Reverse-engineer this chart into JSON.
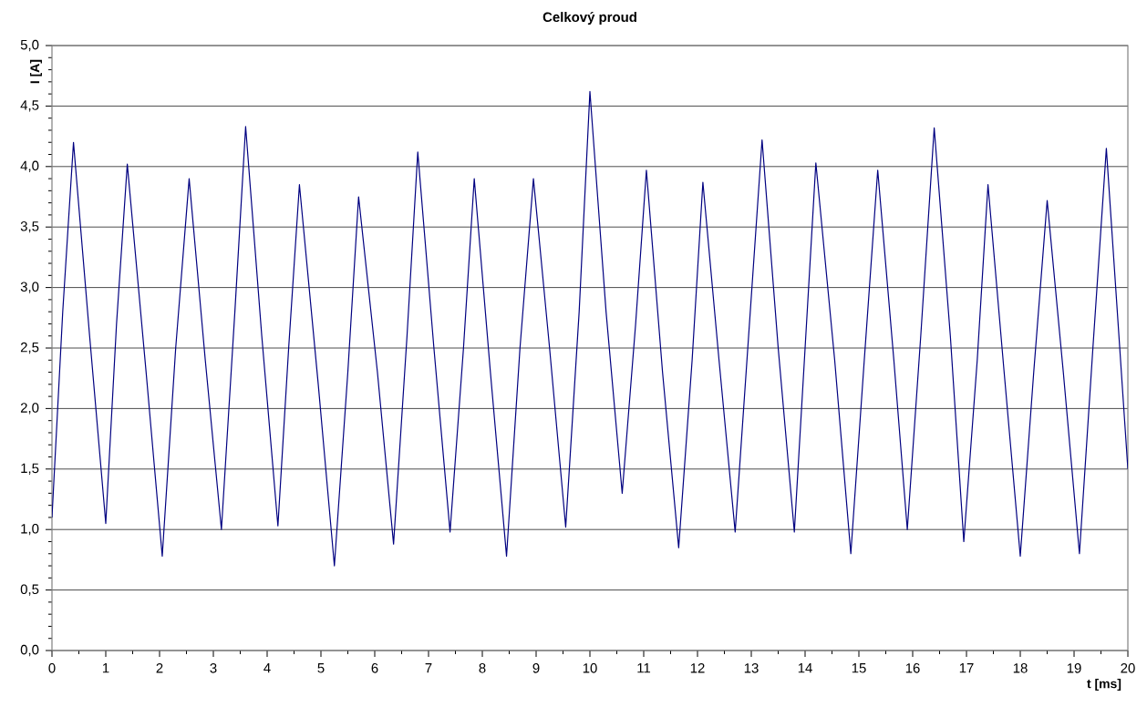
{
  "chart_data": {
    "type": "line",
    "title": "Celkový proud",
    "xlabel": "t [ms]",
    "ylabel": "I [A]",
    "x": [
      0,
      0.2,
      0.4,
      0.7,
      1.0,
      1.2,
      1.4,
      1.75,
      2.05,
      2.3,
      2.55,
      2.85,
      3.15,
      3.4,
      3.6,
      3.9,
      4.2,
      4.4,
      4.6,
      4.95,
      5.25,
      5.5,
      5.7,
      6.05,
      6.35,
      6.6,
      6.8,
      7.1,
      7.4,
      7.65,
      7.85,
      8.15,
      8.45,
      8.7,
      8.95,
      9.25,
      9.55,
      9.8,
      10.0,
      10.3,
      10.6,
      10.85,
      11.05,
      11.35,
      11.65,
      11.9,
      12.1,
      12.4,
      12.7,
      12.95,
      13.2,
      13.5,
      13.8,
      14.0,
      14.2,
      14.55,
      14.85,
      15.1,
      15.35,
      15.65,
      15.9,
      16.15,
      16.4,
      16.7,
      16.95,
      17.2,
      17.4,
      17.7,
      18.0,
      18.25,
      18.5,
      18.8,
      19.1,
      19.35,
      19.6,
      20.0
    ],
    "series": [
      {
        "color": "#000080",
        "values": [
          1.1,
          2.8,
          4.2,
          2.6,
          1.05,
          2.7,
          4.02,
          2.3,
          0.78,
          2.5,
          3.9,
          2.4,
          1.0,
          2.8,
          4.33,
          2.6,
          1.03,
          2.5,
          3.85,
          2.2,
          0.7,
          2.3,
          3.75,
          2.3,
          0.88,
          2.6,
          4.12,
          2.5,
          0.98,
          2.5,
          3.9,
          2.3,
          0.78,
          2.5,
          3.9,
          2.5,
          1.02,
          2.8,
          4.62,
          2.8,
          1.3,
          2.7,
          3.97,
          2.3,
          0.85,
          2.4,
          3.87,
          2.4,
          0.98,
          2.6,
          4.22,
          2.5,
          0.98,
          2.5,
          4.03,
          2.4,
          0.8,
          2.4,
          3.97,
          2.4,
          1.0,
          2.6,
          4.32,
          2.6,
          0.9,
          2.4,
          3.85,
          2.3,
          0.78,
          2.3,
          3.72,
          2.3,
          0.8,
          2.5,
          4.15,
          1.5
        ]
      }
    ],
    "xlim": [
      0,
      20
    ],
    "ylim": [
      0,
      5
    ],
    "xticks": [
      0,
      1,
      2,
      3,
      4,
      5,
      6,
      7,
      8,
      9,
      10,
      11,
      12,
      13,
      14,
      15,
      16,
      17,
      18,
      19,
      20
    ],
    "yticks": [
      {
        "value": 0,
        "label": "0,0"
      },
      {
        "value": 0.5,
        "label": "0,5"
      },
      {
        "value": 1,
        "label": "1,0"
      },
      {
        "value": 1.5,
        "label": "1,5"
      },
      {
        "value": 2,
        "label": "2,0"
      },
      {
        "value": 2.5,
        "label": "2,5"
      },
      {
        "value": 3,
        "label": "3,0"
      },
      {
        "value": 3.5,
        "label": "3,5"
      },
      {
        "value": 4,
        "label": "4,0"
      },
      {
        "value": 4.5,
        "label": "4,5"
      },
      {
        "value": 5,
        "label": "5,0"
      }
    ],
    "grid": "y",
    "marker": "none",
    "line_style": "solid"
  }
}
